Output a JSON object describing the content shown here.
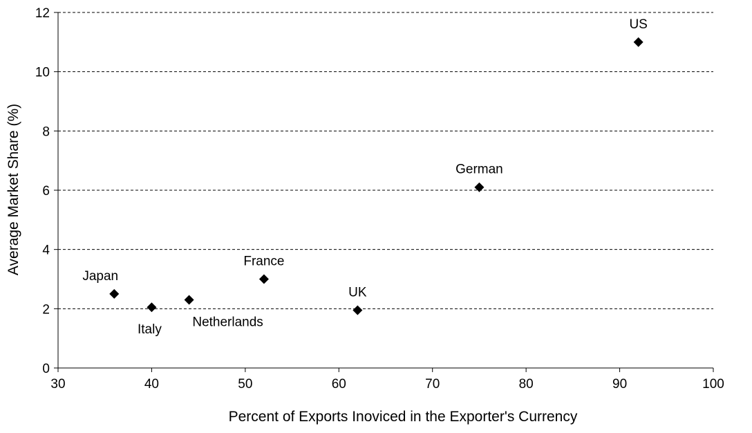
{
  "chart_data": {
    "type": "scatter",
    "title": "",
    "xlabel": "Percent of Exports Inoviced in the Exporter's Currency",
    "ylabel": "Average Market Share (%)",
    "xlim": [
      30,
      100
    ],
    "ylim": [
      0,
      12
    ],
    "x_ticks": [
      "30",
      "40",
      "50",
      "60",
      "70",
      "80",
      "90",
      "100"
    ],
    "y_ticks": [
      "0",
      "2",
      "4",
      "6",
      "8",
      "10",
      "12"
    ],
    "grid": "horizontal dashed",
    "legend": "none",
    "marker": "diamond",
    "marker_color": "#000000",
    "points": [
      {
        "label": "Japan",
        "x": 36,
        "y": 2.5,
        "label_pos": "above-left"
      },
      {
        "label": "Italy",
        "x": 40,
        "y": 2.05,
        "label_pos": "below"
      },
      {
        "label": "Netherlands",
        "x": 44,
        "y": 2.3,
        "label_pos": "below-right"
      },
      {
        "label": "France",
        "x": 52,
        "y": 3.0,
        "label_pos": "above"
      },
      {
        "label": "UK",
        "x": 62,
        "y": 1.95,
        "label_pos": "above"
      },
      {
        "label": "German",
        "x": 75,
        "y": 6.1,
        "label_pos": "above"
      },
      {
        "label": "US",
        "x": 92,
        "y": 11.0,
        "label_pos": "above"
      }
    ]
  }
}
